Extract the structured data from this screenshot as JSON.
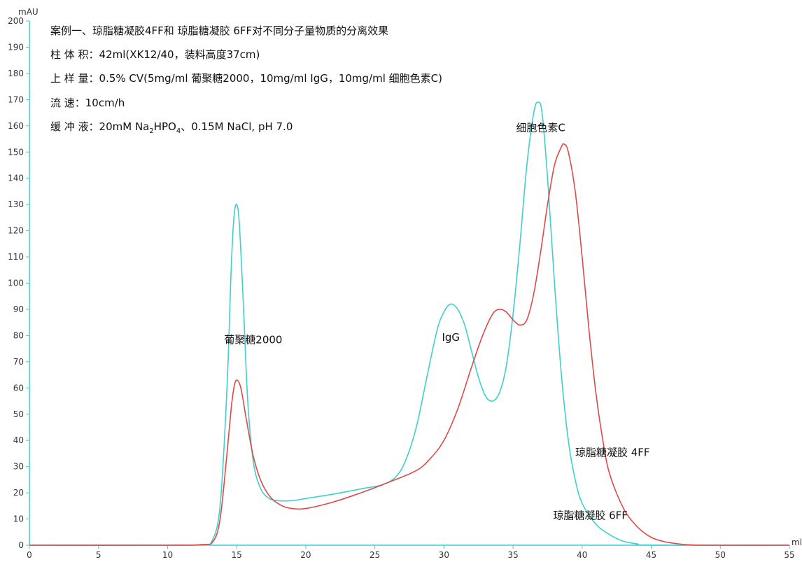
{
  "chart_data": {
    "type": "line",
    "ylabel": "mAU",
    "xlabel": "ml",
    "xlim": [
      0,
      55
    ],
    "ylim": [
      0,
      200
    ],
    "x_ticks": [
      0,
      5,
      10,
      15,
      20,
      25,
      30,
      35,
      40,
      45,
      50,
      55
    ],
    "y_ticks": [
      0,
      10,
      20,
      30,
      40,
      50,
      60,
      70,
      80,
      90,
      100,
      110,
      120,
      130,
      140,
      150,
      160,
      170,
      180,
      190,
      200
    ],
    "info_lines": [
      "案例一、琼脂糖凝胶4FF和 琼脂糖凝胶 6FF对不同分子量物质的分离效果",
      "柱 体 积：42ml(XK12/40，装料高度37cm)",
      "上 样 量：0.5% CV(5mg/ml 葡聚糖2000，10mg/ml IgG，10mg/ml 细胞色素C)",
      "流   速：10cm/h"
    ],
    "buffer_line": {
      "prefix": "缓 冲 液：20mM Na",
      "sub1": "2",
      "mid": "HPO",
      "sub2": "4",
      "suffix": "、0.15M NaCl, pH 7.0"
    },
    "annotations": [
      {
        "text": "葡聚糖2000",
        "x": 16.2,
        "y": 77
      },
      {
        "text": "IgG",
        "x": 30.5,
        "y": 78
      },
      {
        "text": "细胞色素C",
        "x": 37.0,
        "y": 158
      },
      {
        "text": "琼脂糖凝胶 4FF",
        "x": 42.2,
        "y": 34
      },
      {
        "text": "琼脂糖凝胶 6FF",
        "x": 40.6,
        "y": 10
      }
    ],
    "series": [
      {
        "name": "琼脂糖凝胶 6FF",
        "color": "#3ecfcf",
        "points": [
          [
            0,
            0
          ],
          [
            10,
            0
          ],
          [
            12.5,
            0.3
          ],
          [
            13.2,
            1.5
          ],
          [
            13.8,
            15
          ],
          [
            14.3,
            60
          ],
          [
            14.6,
            105
          ],
          [
            14.8,
            125
          ],
          [
            15.0,
            130
          ],
          [
            15.2,
            122
          ],
          [
            15.5,
            90
          ],
          [
            15.8,
            55
          ],
          [
            16.2,
            32
          ],
          [
            16.7,
            22
          ],
          [
            17.3,
            18
          ],
          [
            18.0,
            17
          ],
          [
            19.0,
            17
          ],
          [
            20,
            17.8
          ],
          [
            22,
            19.5
          ],
          [
            24,
            21.5
          ],
          [
            25.5,
            23
          ],
          [
            26.5,
            26
          ],
          [
            27.2,
            32
          ],
          [
            28,
            45
          ],
          [
            28.8,
            65
          ],
          [
            29.5,
            82
          ],
          [
            30.0,
            89
          ],
          [
            30.5,
            92
          ],
          [
            31.0,
            90
          ],
          [
            31.5,
            84
          ],
          [
            32.0,
            74
          ],
          [
            32.5,
            64
          ],
          [
            33.0,
            57
          ],
          [
            33.5,
            55
          ],
          [
            34.0,
            58
          ],
          [
            34.5,
            68
          ],
          [
            35.0,
            88
          ],
          [
            35.5,
            115
          ],
          [
            36.0,
            145
          ],
          [
            36.5,
            165
          ],
          [
            36.8,
            169
          ],
          [
            37.1,
            165
          ],
          [
            37.5,
            140
          ],
          [
            38.0,
            100
          ],
          [
            38.5,
            65
          ],
          [
            39.0,
            40
          ],
          [
            39.5,
            25
          ],
          [
            40.0,
            16
          ],
          [
            41.0,
            8
          ],
          [
            42.0,
            4
          ],
          [
            43.0,
            1.5
          ],
          [
            44.0,
            0.5
          ],
          [
            45.0,
            0
          ],
          [
            55,
            0
          ]
        ]
      },
      {
        "name": "琼脂糖凝胶 4FF",
        "color": "#e04848",
        "points": [
          [
            0,
            0
          ],
          [
            10,
            0
          ],
          [
            12.5,
            0.2
          ],
          [
            13.3,
            1.5
          ],
          [
            13.8,
            10
          ],
          [
            14.3,
            35
          ],
          [
            14.6,
            52
          ],
          [
            14.8,
            60
          ],
          [
            15.0,
            63
          ],
          [
            15.3,
            60
          ],
          [
            15.7,
            48
          ],
          [
            16.2,
            34
          ],
          [
            16.8,
            24
          ],
          [
            17.5,
            18
          ],
          [
            18.3,
            15
          ],
          [
            19.0,
            14
          ],
          [
            20,
            14
          ],
          [
            22,
            16.5
          ],
          [
            24,
            20
          ],
          [
            26,
            24
          ],
          [
            28,
            28.5
          ],
          [
            29,
            33
          ],
          [
            30,
            40
          ],
          [
            31,
            52
          ],
          [
            32,
            68
          ],
          [
            32.8,
            80
          ],
          [
            33.5,
            88
          ],
          [
            34.0,
            90
          ],
          [
            34.5,
            89
          ],
          [
            35.0,
            86
          ],
          [
            35.5,
            84
          ],
          [
            36.0,
            86
          ],
          [
            36.5,
            96
          ],
          [
            37.0,
            112
          ],
          [
            37.5,
            130
          ],
          [
            38.0,
            145
          ],
          [
            38.5,
            152
          ],
          [
            38.7,
            153
          ],
          [
            39.0,
            150
          ],
          [
            39.5,
            135
          ],
          [
            40.0,
            110
          ],
          [
            40.5,
            82
          ],
          [
            41.0,
            58
          ],
          [
            41.5,
            40
          ],
          [
            42.0,
            27
          ],
          [
            43.0,
            14
          ],
          [
            44.0,
            7
          ],
          [
            45.0,
            3
          ],
          [
            46.0,
            1.3
          ],
          [
            47.0,
            0.5
          ],
          [
            48.0,
            0.1
          ],
          [
            49.0,
            0
          ],
          [
            55,
            0
          ]
        ]
      }
    ]
  }
}
